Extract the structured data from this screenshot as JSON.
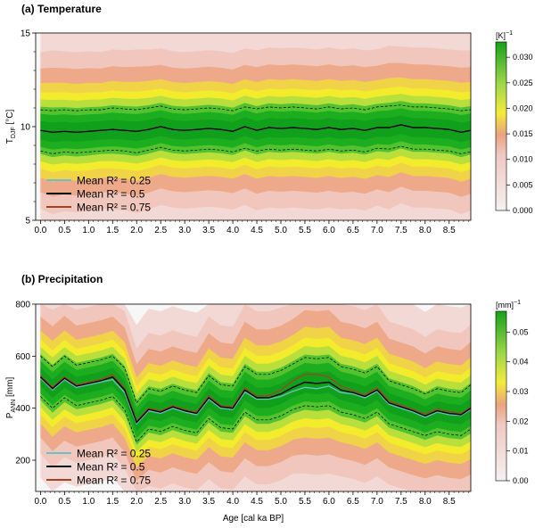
{
  "colors": {
    "low": "#f6f6f6",
    "pink": "#f3c8c4",
    "orange": "#e9a07d",
    "yellow": "#f2ec2c",
    "green": "#16ad16",
    "darkgreen": "#0f9a1e",
    "r025": "#6cc1c4",
    "r05": "#000000",
    "r075": "#a04523"
  },
  "shared": {
    "xlabel": "Age [cal ka BP]",
    "xticks": [
      "0.0",
      "0.5",
      "1.0",
      "1.5",
      "2.0",
      "2.5",
      "3.0",
      "3.5",
      "4.0",
      "4.5",
      "5.0",
      "5.5",
      "6.0",
      "6.5",
      "7.0",
      "7.5",
      "8.0",
      "8.5"
    ],
    "legend": [
      "Mean R² = 0.25",
      "Mean R² = 0.5",
      "Mean R² = 0.75"
    ]
  },
  "chart_data": [
    {
      "type": "area",
      "title": "(a) Temperature",
      "ylabel": "T_DJF [°C]",
      "ylabel_main": "T",
      "ylabel_sub": "DJF",
      "ylabel_unit": " [°C]",
      "ylim": [
        5,
        15
      ],
      "yticks": [
        "5",
        "10",
        "15"
      ],
      "xlim": [
        -0.1,
        8.95
      ],
      "colorbar": {
        "unit_main": "[K]",
        "unit_sup": "−1",
        "range": [
          0.0,
          0.033
        ],
        "ticks": [
          "0.000",
          "0.005",
          "0.010",
          "0.015",
          "0.020",
          "0.025",
          "0.030"
        ]
      },
      "x": [
        0.0,
        0.25,
        0.5,
        0.75,
        1.0,
        1.25,
        1.5,
        1.75,
        2.0,
        2.25,
        2.5,
        2.75,
        3.0,
        3.25,
        3.5,
        3.75,
        4.0,
        4.25,
        4.5,
        4.75,
        5.0,
        5.25,
        5.5,
        5.75,
        6.0,
        6.25,
        6.5,
        6.75,
        7.0,
        7.25,
        7.5,
        7.75,
        8.0,
        8.25,
        8.5,
        8.75,
        8.95
      ],
      "mean": [
        9.8,
        9.7,
        9.75,
        9.7,
        9.75,
        9.8,
        9.85,
        9.8,
        9.75,
        9.85,
        10.0,
        9.85,
        9.8,
        9.85,
        9.9,
        9.85,
        9.75,
        10.0,
        9.8,
        9.95,
        9.9,
        9.95,
        9.9,
        9.85,
        9.95,
        9.85,
        9.9,
        9.8,
        9.95,
        9.95,
        10.1,
        9.95,
        9.95,
        9.9,
        9.85,
        9.7,
        9.8
      ],
      "upper": [
        10.9,
        10.85,
        10.9,
        10.85,
        10.9,
        10.9,
        11.0,
        10.95,
        10.9,
        11.0,
        11.1,
        10.95,
        10.9,
        10.95,
        11.0,
        10.95,
        10.85,
        11.05,
        10.95,
        11.05,
        11.0,
        11.05,
        11.0,
        10.95,
        11.05,
        10.95,
        11.0,
        10.9,
        11.05,
        11.1,
        11.15,
        11.05,
        11.05,
        11.0,
        10.95,
        10.85,
        10.9
      ],
      "lower": [
        8.7,
        8.55,
        8.65,
        8.6,
        8.65,
        8.7,
        8.75,
        8.7,
        8.6,
        8.75,
        8.9,
        8.75,
        8.7,
        8.75,
        8.8,
        8.75,
        8.65,
        8.85,
        8.7,
        8.8,
        8.75,
        8.8,
        8.75,
        8.7,
        8.8,
        8.7,
        8.75,
        8.65,
        8.85,
        8.8,
        8.95,
        8.8,
        8.8,
        8.75,
        8.7,
        8.55,
        8.65
      ],
      "series": [
        {
          "name": "Mean R² = 0.25",
          "values": [
            9.8,
            9.7,
            9.75,
            9.7,
            9.75,
            9.8,
            9.85,
            9.8,
            9.75,
            9.85,
            10.0,
            9.85,
            9.8,
            9.85,
            9.9,
            9.85,
            9.75,
            10.0,
            9.8,
            9.95,
            9.9,
            9.95,
            9.9,
            9.85,
            9.95,
            9.85,
            9.9,
            9.8,
            9.95,
            9.95,
            10.1,
            9.95,
            9.95,
            9.9,
            9.85,
            9.7,
            9.8
          ]
        },
        {
          "name": "Mean R² = 0.5",
          "values": [
            9.8,
            9.7,
            9.75,
            9.7,
            9.75,
            9.8,
            9.85,
            9.8,
            9.75,
            9.85,
            10.0,
            9.85,
            9.8,
            9.85,
            9.9,
            9.85,
            9.75,
            10.0,
            9.8,
            9.95,
            9.9,
            9.95,
            9.9,
            9.85,
            9.95,
            9.85,
            9.9,
            9.8,
            9.95,
            9.95,
            10.1,
            9.95,
            9.95,
            9.9,
            9.85,
            9.7,
            9.8
          ]
        },
        {
          "name": "Mean R² = 0.75",
          "values": [
            9.8,
            9.7,
            9.75,
            9.7,
            9.75,
            9.8,
            9.85,
            9.8,
            9.75,
            9.85,
            10.0,
            9.85,
            9.8,
            9.85,
            9.9,
            9.85,
            9.75,
            10.0,
            9.8,
            9.95,
            9.9,
            9.95,
            9.9,
            9.85,
            9.95,
            9.85,
            9.9,
            9.8,
            9.95,
            9.95,
            10.1,
            9.95,
            9.95,
            9.9,
            9.85,
            9.7,
            9.8
          ]
        }
      ]
    },
    {
      "type": "area",
      "title": "(b) Precipitation",
      "ylabel": "P_ANN [mm]",
      "ylabel_main": "P",
      "ylabel_sub": "ANN",
      "ylabel_unit": " [mm]",
      "ylim": [
        80,
        800
      ],
      "yticks": [
        "200",
        "400",
        "600",
        "800"
      ],
      "xlim": [
        -0.1,
        8.95
      ],
      "colorbar": {
        "unit_main": "[mm]",
        "unit_sup": "−1",
        "range": [
          0.0,
          0.057
        ],
        "ticks": [
          "0.00",
          "0.01",
          "0.02",
          "0.03",
          "0.04",
          "0.05"
        ]
      },
      "x": [
        0.0,
        0.25,
        0.5,
        0.75,
        1.0,
        1.25,
        1.5,
        1.75,
        2.0,
        2.25,
        2.5,
        2.75,
        3.0,
        3.25,
        3.5,
        3.75,
        4.0,
        4.25,
        4.5,
        4.75,
        5.0,
        5.25,
        5.5,
        5.75,
        6.0,
        6.25,
        6.5,
        6.75,
        7.0,
        7.25,
        7.5,
        7.75,
        8.0,
        8.25,
        8.5,
        8.75,
        8.95
      ],
      "mean": [
        520,
        475,
        515,
        485,
        495,
        505,
        520,
        470,
        345,
        395,
        385,
        405,
        390,
        380,
        440,
        405,
        400,
        470,
        440,
        440,
        455,
        480,
        500,
        495,
        500,
        470,
        460,
        445,
        470,
        420,
        405,
        390,
        370,
        390,
        380,
        375,
        400
      ],
      "upper": [
        600,
        560,
        600,
        565,
        575,
        585,
        600,
        555,
        420,
        475,
        465,
        485,
        470,
        460,
        525,
        490,
        485,
        560,
        530,
        530,
        545,
        570,
        595,
        590,
        595,
        560,
        550,
        535,
        560,
        505,
        490,
        475,
        455,
        475,
        465,
        460,
        490
      ],
      "lower": [
        445,
        400,
        440,
        410,
        420,
        430,
        445,
        395,
        270,
        320,
        310,
        330,
        315,
        305,
        360,
        325,
        320,
        385,
        355,
        355,
        370,
        395,
        410,
        405,
        410,
        385,
        375,
        360,
        385,
        340,
        325,
        310,
        295,
        310,
        300,
        295,
        320
      ],
      "series": [
        {
          "name": "Mean R² = 0.25",
          "values": [
            515,
            470,
            510,
            480,
            490,
            500,
            510,
            460,
            340,
            390,
            380,
            400,
            385,
            375,
            435,
            400,
            395,
            462,
            435,
            435,
            445,
            465,
            480,
            475,
            485,
            460,
            455,
            440,
            465,
            415,
            400,
            385,
            365,
            385,
            375,
            372,
            395
          ]
        },
        {
          "name": "Mean R² = 0.5",
          "values": [
            520,
            475,
            515,
            485,
            495,
            505,
            520,
            470,
            345,
            395,
            385,
            405,
            390,
            380,
            440,
            405,
            400,
            470,
            440,
            440,
            455,
            480,
            500,
            495,
            500,
            470,
            460,
            445,
            470,
            420,
            405,
            390,
            370,
            390,
            380,
            375,
            400
          ]
        },
        {
          "name": "Mean R² = 0.75",
          "values": [
            525,
            480,
            520,
            490,
            500,
            510,
            530,
            478,
            350,
            400,
            390,
            410,
            395,
            385,
            448,
            410,
            405,
            478,
            447,
            450,
            470,
            505,
            530,
            530,
            520,
            485,
            468,
            452,
            478,
            428,
            412,
            396,
            378,
            397,
            387,
            380,
            404
          ]
        }
      ]
    }
  ]
}
